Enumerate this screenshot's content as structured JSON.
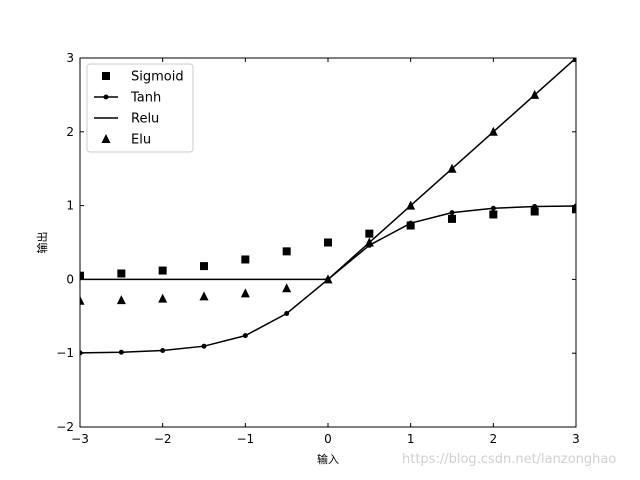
{
  "chart_data": {
    "type": "line",
    "title": "",
    "xlabel": "输入",
    "ylabel": "输出",
    "xlim": [
      -3,
      3
    ],
    "ylim": [
      -2,
      3
    ],
    "xticks": [
      -3,
      -2,
      -1,
      0,
      1,
      2,
      3
    ],
    "yticks": [
      -2,
      -1,
      0,
      1,
      2,
      3
    ],
    "xtick_labels": [
      "−3",
      "−2",
      "−1",
      "0",
      "1",
      "2",
      "3"
    ],
    "ytick_labels": [
      "−2",
      "−1",
      "0",
      "1",
      "2",
      "3"
    ],
    "grid": false,
    "legend_position": "top-left",
    "x": [
      -3,
      -2.5,
      -2,
      -1.5,
      -1,
      -0.5,
      0,
      0.5,
      1,
      1.5,
      2,
      2.5,
      3
    ],
    "series": [
      {
        "name": "Sigmoid",
        "style": "square-markers",
        "color": "#000000",
        "values": [
          0.05,
          0.08,
          0.12,
          0.18,
          0.27,
          0.38,
          0.5,
          0.62,
          0.73,
          0.82,
          0.88,
          0.92,
          0.95
        ]
      },
      {
        "name": "Tanh",
        "style": "line-dot-markers",
        "color": "#000000",
        "values": [
          -0.995,
          -0.987,
          -0.964,
          -0.905,
          -0.762,
          -0.462,
          0,
          0.462,
          0.762,
          0.905,
          0.964,
          0.987,
          0.995
        ]
      },
      {
        "name": "Relu",
        "style": "line",
        "color": "#000000",
        "values": [
          0,
          0,
          0,
          0,
          0,
          0,
          0,
          0.5,
          1,
          1.5,
          2,
          2.5,
          3
        ]
      },
      {
        "name": "Elu",
        "style": "triangle-markers",
        "color": "#000000",
        "values": [
          -0.29,
          -0.28,
          -0.26,
          -0.23,
          -0.19,
          -0.12,
          0,
          0.5,
          1,
          1.5,
          2,
          2.5,
          3
        ]
      }
    ]
  },
  "watermark": "https://blog.csdn.net/lanzonghao"
}
